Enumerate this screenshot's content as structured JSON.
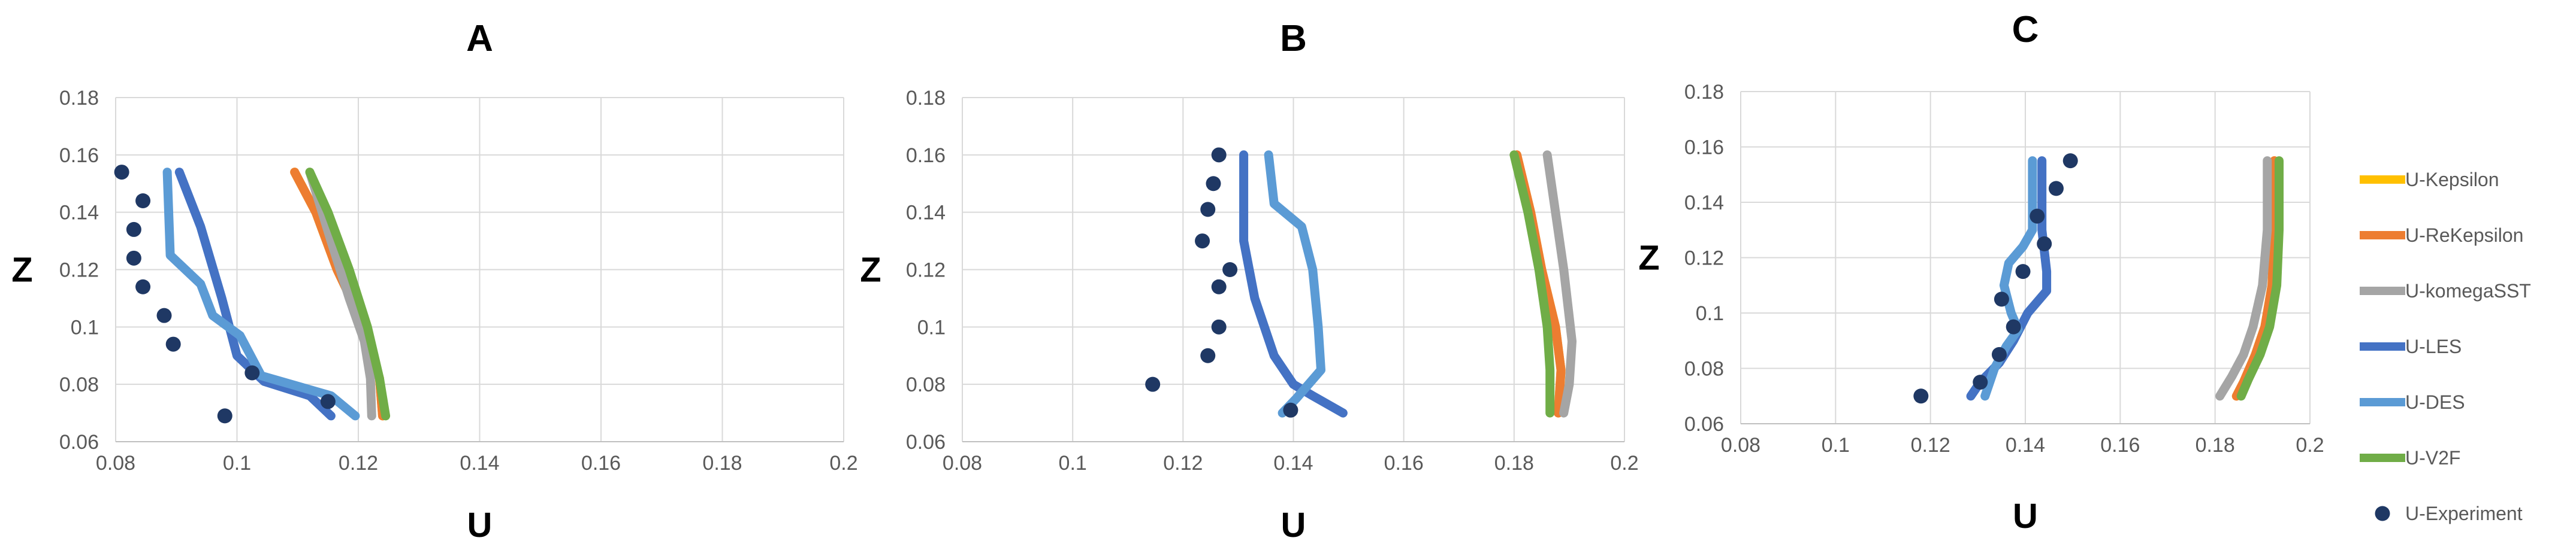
{
  "series_styles": [
    {
      "name": "U-Kepsilon",
      "color": "#FFC000",
      "kind": "line"
    },
    {
      "name": "U-ReKepsilon",
      "color": "#ED7D31",
      "kind": "line"
    },
    {
      "name": "U-komegaSST",
      "color": "#A5A5A5",
      "kind": "line"
    },
    {
      "name": "U-LES",
      "color": "#4472C4",
      "kind": "line"
    },
    {
      "name": "U-DES",
      "color": "#5B9BD5",
      "kind": "line"
    },
    {
      "name": "U-V2F",
      "color": "#70AD47",
      "kind": "line"
    },
    {
      "name": "U-Experiment",
      "color": "#1F3864",
      "kind": "marker"
    }
  ],
  "chart_data": [
    {
      "type": "line",
      "title": "A",
      "xlabel": "U",
      "ylabel": "Z",
      "xlim": [
        0.08,
        0.2
      ],
      "ylim": [
        0.06,
        0.18
      ],
      "x_ticks": [
        "0.08",
        "0.1",
        "0.12",
        "0.14",
        "0.16",
        "0.18",
        "0.2"
      ],
      "y_ticks": [
        "0.06",
        "0.08",
        "0.1",
        "0.12",
        "0.14",
        "0.16",
        "0.18"
      ],
      "grid": "vertical",
      "series": [
        {
          "name": "U-Kepsilon",
          "points": [
            [
              0.1095,
              0.154
            ],
            [
              0.113,
              0.14
            ],
            [
              0.1165,
              0.12
            ],
            [
              0.121,
              0.1
            ],
            [
              0.1235,
              0.082
            ],
            [
              0.124,
              0.069
            ]
          ]
        },
        {
          "name": "U-ReKepsilon",
          "points": [
            [
              0.1095,
              0.154
            ],
            [
              0.113,
              0.14
            ],
            [
              0.1165,
              0.12
            ],
            [
              0.121,
              0.1
            ],
            [
              0.1235,
              0.082
            ],
            [
              0.124,
              0.069
            ]
          ]
        },
        {
          "name": "U-komegaSST",
          "points": [
            [
              0.112,
              0.154
            ],
            [
              0.1155,
              0.13
            ],
            [
              0.1185,
              0.11
            ],
            [
              0.121,
              0.095
            ],
            [
              0.122,
              0.082
            ],
            [
              0.1222,
              0.069
            ]
          ]
        },
        {
          "name": "U-LES",
          "points": [
            [
              0.0905,
              0.154
            ],
            [
              0.094,
              0.135
            ],
            [
              0.0975,
              0.11
            ],
            [
              0.1,
              0.09
            ],
            [
              0.1045,
              0.081
            ],
            [
              0.112,
              0.076
            ],
            [
              0.1155,
              0.069
            ]
          ]
        },
        {
          "name": "U-DES",
          "points": [
            [
              0.0885,
              0.154
            ],
            [
              0.089,
              0.125
            ],
            [
              0.094,
              0.115
            ],
            [
              0.096,
              0.104
            ],
            [
              0.1005,
              0.097
            ],
            [
              0.104,
              0.083
            ],
            [
              0.1155,
              0.076
            ],
            [
              0.1195,
              0.069
            ]
          ]
        },
        {
          "name": "U-V2F",
          "points": [
            [
              0.112,
              0.154
            ],
            [
              0.115,
              0.14
            ],
            [
              0.1185,
              0.12
            ],
            [
              0.1215,
              0.1
            ],
            [
              0.1235,
              0.082
            ],
            [
              0.1245,
              0.069
            ]
          ]
        },
        {
          "name": "U-Experiment",
          "points": [
            [
              0.081,
              0.154
            ],
            [
              0.0845,
              0.144
            ],
            [
              0.083,
              0.134
            ],
            [
              0.083,
              0.124
            ],
            [
              0.0845,
              0.114
            ],
            [
              0.088,
              0.104
            ],
            [
              0.0895,
              0.094
            ],
            [
              0.1025,
              0.084
            ],
            [
              0.115,
              0.074
            ],
            [
              0.098,
              0.069
            ]
          ]
        }
      ]
    },
    {
      "type": "line",
      "title": "B",
      "xlabel": "U",
      "ylabel": "Z",
      "xlim": [
        0.08,
        0.2
      ],
      "ylim": [
        0.06,
        0.18
      ],
      "x_ticks": [
        "0.08",
        "0.1",
        "0.12",
        "0.14",
        "0.16",
        "0.18",
        "0.2"
      ],
      "y_ticks": [
        "0.06",
        "0.08",
        "0.1",
        "0.12",
        "0.14",
        "0.16",
        "0.18"
      ],
      "grid": "vertical",
      "series": [
        {
          "name": "U-Kepsilon",
          "points": [
            [
              0.1805,
              0.16
            ],
            [
              0.183,
              0.14
            ],
            [
              0.185,
              0.12
            ],
            [
              0.1875,
              0.1
            ],
            [
              0.1885,
              0.085
            ],
            [
              0.188,
              0.07
            ]
          ]
        },
        {
          "name": "U-ReKepsilon",
          "points": [
            [
              0.1805,
              0.16
            ],
            [
              0.183,
              0.14
            ],
            [
              0.185,
              0.12
            ],
            [
              0.1875,
              0.1
            ],
            [
              0.1885,
              0.085
            ],
            [
              0.188,
              0.07
            ]
          ]
        },
        {
          "name": "U-komegaSST",
          "points": [
            [
              0.186,
              0.16
            ],
            [
              0.1875,
              0.14
            ],
            [
              0.189,
              0.12
            ],
            [
              0.1905,
              0.095
            ],
            [
              0.19,
              0.08
            ],
            [
              0.189,
              0.07
            ]
          ]
        },
        {
          "name": "U-LES",
          "points": [
            [
              0.131,
              0.16
            ],
            [
              0.131,
              0.13
            ],
            [
              0.133,
              0.11
            ],
            [
              0.1365,
              0.09
            ],
            [
              0.14,
              0.08
            ],
            [
              0.1435,
              0.076
            ],
            [
              0.149,
              0.07
            ]
          ]
        },
        {
          "name": "U-DES",
          "points": [
            [
              0.1355,
              0.16
            ],
            [
              0.1365,
              0.143
            ],
            [
              0.1415,
              0.135
            ],
            [
              0.1435,
              0.12
            ],
            [
              0.1445,
              0.1
            ],
            [
              0.145,
              0.085
            ],
            [
              0.1405,
              0.075
            ],
            [
              0.138,
              0.07
            ]
          ]
        },
        {
          "name": "U-V2F",
          "points": [
            [
              0.18,
              0.16
            ],
            [
              0.1825,
              0.14
            ],
            [
              0.1845,
              0.12
            ],
            [
              0.186,
              0.1
            ],
            [
              0.1865,
              0.085
            ],
            [
              0.1865,
              0.07
            ]
          ]
        },
        {
          "name": "U-Experiment",
          "points": [
            [
              0.1265,
              0.16
            ],
            [
              0.1255,
              0.15
            ],
            [
              0.1245,
              0.141
            ],
            [
              0.1235,
              0.13
            ],
            [
              0.1285,
              0.12
            ],
            [
              0.1265,
              0.114
            ],
            [
              0.1265,
              0.1
            ],
            [
              0.1245,
              0.09
            ],
            [
              0.1145,
              0.08
            ],
            [
              0.1395,
              0.071
            ]
          ]
        }
      ]
    },
    {
      "type": "line",
      "title": "C",
      "xlabel": "U",
      "ylabel": "Z",
      "xlim": [
        0.08,
        0.2
      ],
      "ylim": [
        0.06,
        0.18
      ],
      "x_ticks": [
        "0.08",
        "0.1",
        "0.12",
        "0.14",
        "0.16",
        "0.18",
        "0.2"
      ],
      "y_ticks": [
        "0.06",
        "0.08",
        "0.1",
        "0.12",
        "0.14",
        "0.16",
        "0.18"
      ],
      "grid": "vertical",
      "series": [
        {
          "name": "U-Kepsilon",
          "points": [
            [
              0.1925,
              0.155
            ],
            [
              0.1925,
              0.13
            ],
            [
              0.192,
              0.11
            ],
            [
              0.1905,
              0.095
            ],
            [
              0.1885,
              0.085
            ],
            [
              0.186,
              0.075
            ],
            [
              0.1845,
              0.07
            ]
          ]
        },
        {
          "name": "U-ReKepsilon",
          "points": [
            [
              0.1925,
              0.155
            ],
            [
              0.1925,
              0.13
            ],
            [
              0.192,
              0.11
            ],
            [
              0.1905,
              0.095
            ],
            [
              0.1885,
              0.085
            ],
            [
              0.186,
              0.075
            ],
            [
              0.1845,
              0.07
            ]
          ]
        },
        {
          "name": "U-komegaSST",
          "points": [
            [
              0.191,
              0.155
            ],
            [
              0.191,
              0.13
            ],
            [
              0.19,
              0.11
            ],
            [
              0.188,
              0.095
            ],
            [
              0.186,
              0.085
            ],
            [
              0.1835,
              0.077
            ],
            [
              0.181,
              0.07
            ]
          ]
        },
        {
          "name": "U-LES",
          "points": [
            [
              0.1435,
              0.155
            ],
            [
              0.1435,
              0.13
            ],
            [
              0.1445,
              0.115
            ],
            [
              0.1445,
              0.108
            ],
            [
              0.1405,
              0.1
            ],
            [
              0.1375,
              0.09
            ],
            [
              0.1345,
              0.082
            ],
            [
              0.1305,
              0.075
            ],
            [
              0.1285,
              0.07
            ]
          ]
        },
        {
          "name": "U-DES",
          "points": [
            [
              0.1415,
              0.155
            ],
            [
              0.1415,
              0.13
            ],
            [
              0.1395,
              0.124
            ],
            [
              0.1365,
              0.118
            ],
            [
              0.1355,
              0.11
            ],
            [
              0.137,
              0.1
            ],
            [
              0.1385,
              0.094
            ],
            [
              0.136,
              0.088
            ],
            [
              0.1335,
              0.08
            ],
            [
              0.1315,
              0.07
            ]
          ]
        },
        {
          "name": "U-V2F",
          "points": [
            [
              0.1935,
              0.155
            ],
            [
              0.1935,
              0.13
            ],
            [
              0.193,
              0.11
            ],
            [
              0.1915,
              0.095
            ],
            [
              0.1895,
              0.085
            ],
            [
              0.187,
              0.076
            ],
            [
              0.1855,
              0.07
            ]
          ]
        },
        {
          "name": "U-Experiment",
          "points": [
            [
              0.1495,
              0.155
            ],
            [
              0.1465,
              0.145
            ],
            [
              0.1425,
              0.135
            ],
            [
              0.144,
              0.125
            ],
            [
              0.1395,
              0.115
            ],
            [
              0.135,
              0.105
            ],
            [
              0.1375,
              0.095
            ],
            [
              0.1345,
              0.085
            ],
            [
              0.1305,
              0.075
            ],
            [
              0.118,
              0.07
            ]
          ]
        }
      ]
    }
  ]
}
